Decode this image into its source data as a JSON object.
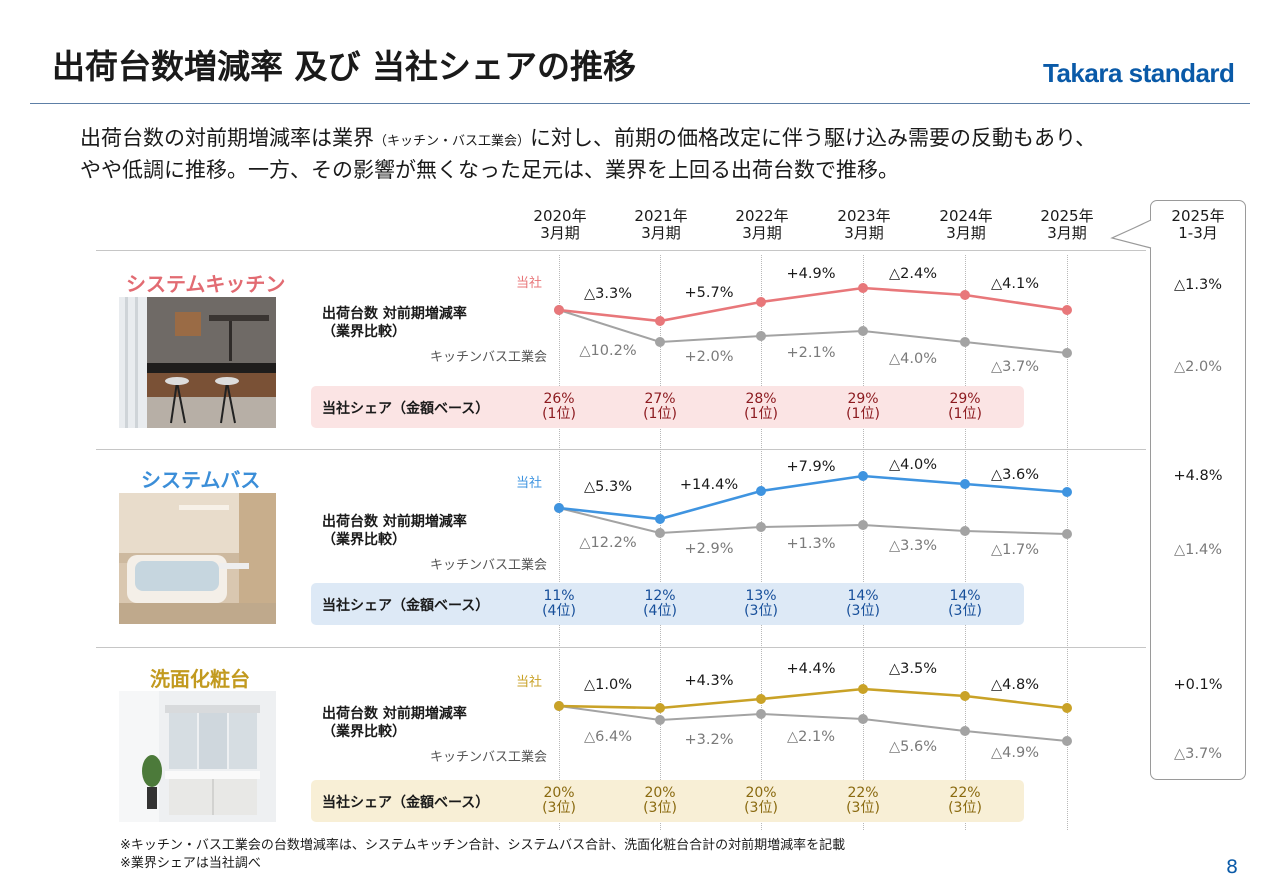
{
  "page_title": "出荷台数増減率 及び 当社シェアの推移",
  "brand": "Takara standard",
  "lead_line1_a": "出荷台数の対前期増減率は業界",
  "lead_line1_small": "（キッチン・バス工業会）",
  "lead_line1_b": "に対し、前期の価格改定に伴う駆け込み需要の反動もあり、",
  "lead_line2": "やや低調に推移。一方、その影響が無くなった足元は、業界を上回る出荷台数で推移。",
  "years": [
    {
      "y": "2020年",
      "p": "3月期"
    },
    {
      "y": "2021年",
      "p": "3月期"
    },
    {
      "y": "2022年",
      "p": "3月期"
    },
    {
      "y": "2023年",
      "p": "3月期"
    },
    {
      "y": "2024年",
      "p": "3月期"
    },
    {
      "y": "2025年",
      "p": "3月期"
    }
  ],
  "callout_year": "2025年",
  "callout_period": "1-3月",
  "common_labels": {
    "metric_line1": "出荷台数 対前期増減率",
    "metric_line2": "（業界比較）",
    "company": "当社",
    "industry": "キッチンバス工業会",
    "share_title": "当社シェア（金額ベース）"
  },
  "chart_data": [
    {
      "type": "line",
      "segment": "システムキッチン",
      "color": "#e8777a",
      "band_color": "#fbe4e4",
      "share_text_color": "#8c1a1f",
      "categories": [
        "2020年3月期",
        "2021年3月期",
        "2022年3月期",
        "2023年3月期",
        "2024年3月期",
        "2025年3月期"
      ],
      "series": [
        {
          "name": "当社",
          "labels": [
            "",
            "△3.3%",
            "+5.7%",
            "+4.9%",
            "△2.4%",
            "△4.1%"
          ]
        },
        {
          "name": "キッチンバス工業会",
          "labels": [
            "",
            "△10.2%",
            "+2.0%",
            "+2.1%",
            "△4.0%",
            "△3.7%"
          ]
        }
      ],
      "share": [
        {
          "pct": "26%",
          "rank": "(1位)"
        },
        {
          "pct": "27%",
          "rank": "(1位)"
        },
        {
          "pct": "28%",
          "rank": "(1位)"
        },
        {
          "pct": "29%",
          "rank": "(1位)"
        },
        {
          "pct": "29%",
          "rank": "(1位)"
        }
      ],
      "latest": {
        "company": "△1.3%",
        "industry": "△2.0%"
      }
    },
    {
      "type": "line",
      "segment": "システムバス",
      "color": "#3f94e0",
      "band_color": "#dde9f6",
      "share_text_color": "#174f9a",
      "categories": [
        "2020年3月期",
        "2021年3月期",
        "2022年3月期",
        "2023年3月期",
        "2024年3月期",
        "2025年3月期"
      ],
      "series": [
        {
          "name": "当社",
          "labels": [
            "",
            "△5.3%",
            "+14.4%",
            "+7.9%",
            "△4.0%",
            "△3.6%"
          ]
        },
        {
          "name": "キッチンバス工業会",
          "labels": [
            "",
            "△12.2%",
            "+2.9%",
            "+1.3%",
            "△3.3%",
            "△1.7%"
          ]
        }
      ],
      "share": [
        {
          "pct": "11%",
          "rank": "(4位)"
        },
        {
          "pct": "12%",
          "rank": "(4位)"
        },
        {
          "pct": "13%",
          "rank": "(3位)"
        },
        {
          "pct": "14%",
          "rank": "(3位)"
        },
        {
          "pct": "14%",
          "rank": "(3位)"
        }
      ],
      "latest": {
        "company": "+4.8%",
        "industry": "△1.4%"
      }
    },
    {
      "type": "line",
      "segment": "洗面化粧台",
      "color": "#c9a227",
      "band_color": "#f8efd6",
      "share_text_color": "#8a6a10",
      "categories": [
        "2020年3月期",
        "2021年3月期",
        "2022年3月期",
        "2023年3月期",
        "2024年3月期",
        "2025年3月期"
      ],
      "series": [
        {
          "name": "当社",
          "labels": [
            "",
            "△1.0%",
            "+4.3%",
            "+4.4%",
            "△3.5%",
            "△4.8%"
          ]
        },
        {
          "name": "キッチンバス工業会",
          "labels": [
            "",
            "△6.4%",
            "+3.2%",
            "△2.1%",
            "△5.6%",
            "△4.9%"
          ]
        }
      ],
      "share": [
        {
          "pct": "20%",
          "rank": "(3位)"
        },
        {
          "pct": "20%",
          "rank": "(3位)"
        },
        {
          "pct": "20%",
          "rank": "(3位)"
        },
        {
          "pct": "22%",
          "rank": "(3位)"
        },
        {
          "pct": "22%",
          "rank": "(3位)"
        }
      ],
      "latest": {
        "company": "+0.1%",
        "industry": "△3.7%"
      }
    }
  ],
  "notes": [
    "※キッチン・バス工業会の台数増減率は、システムキッチン合計、システムバス合計、洗面化粧台合計の対前期増減率を記載",
    "※業界シェアは当社調べ"
  ],
  "page_number": "8"
}
